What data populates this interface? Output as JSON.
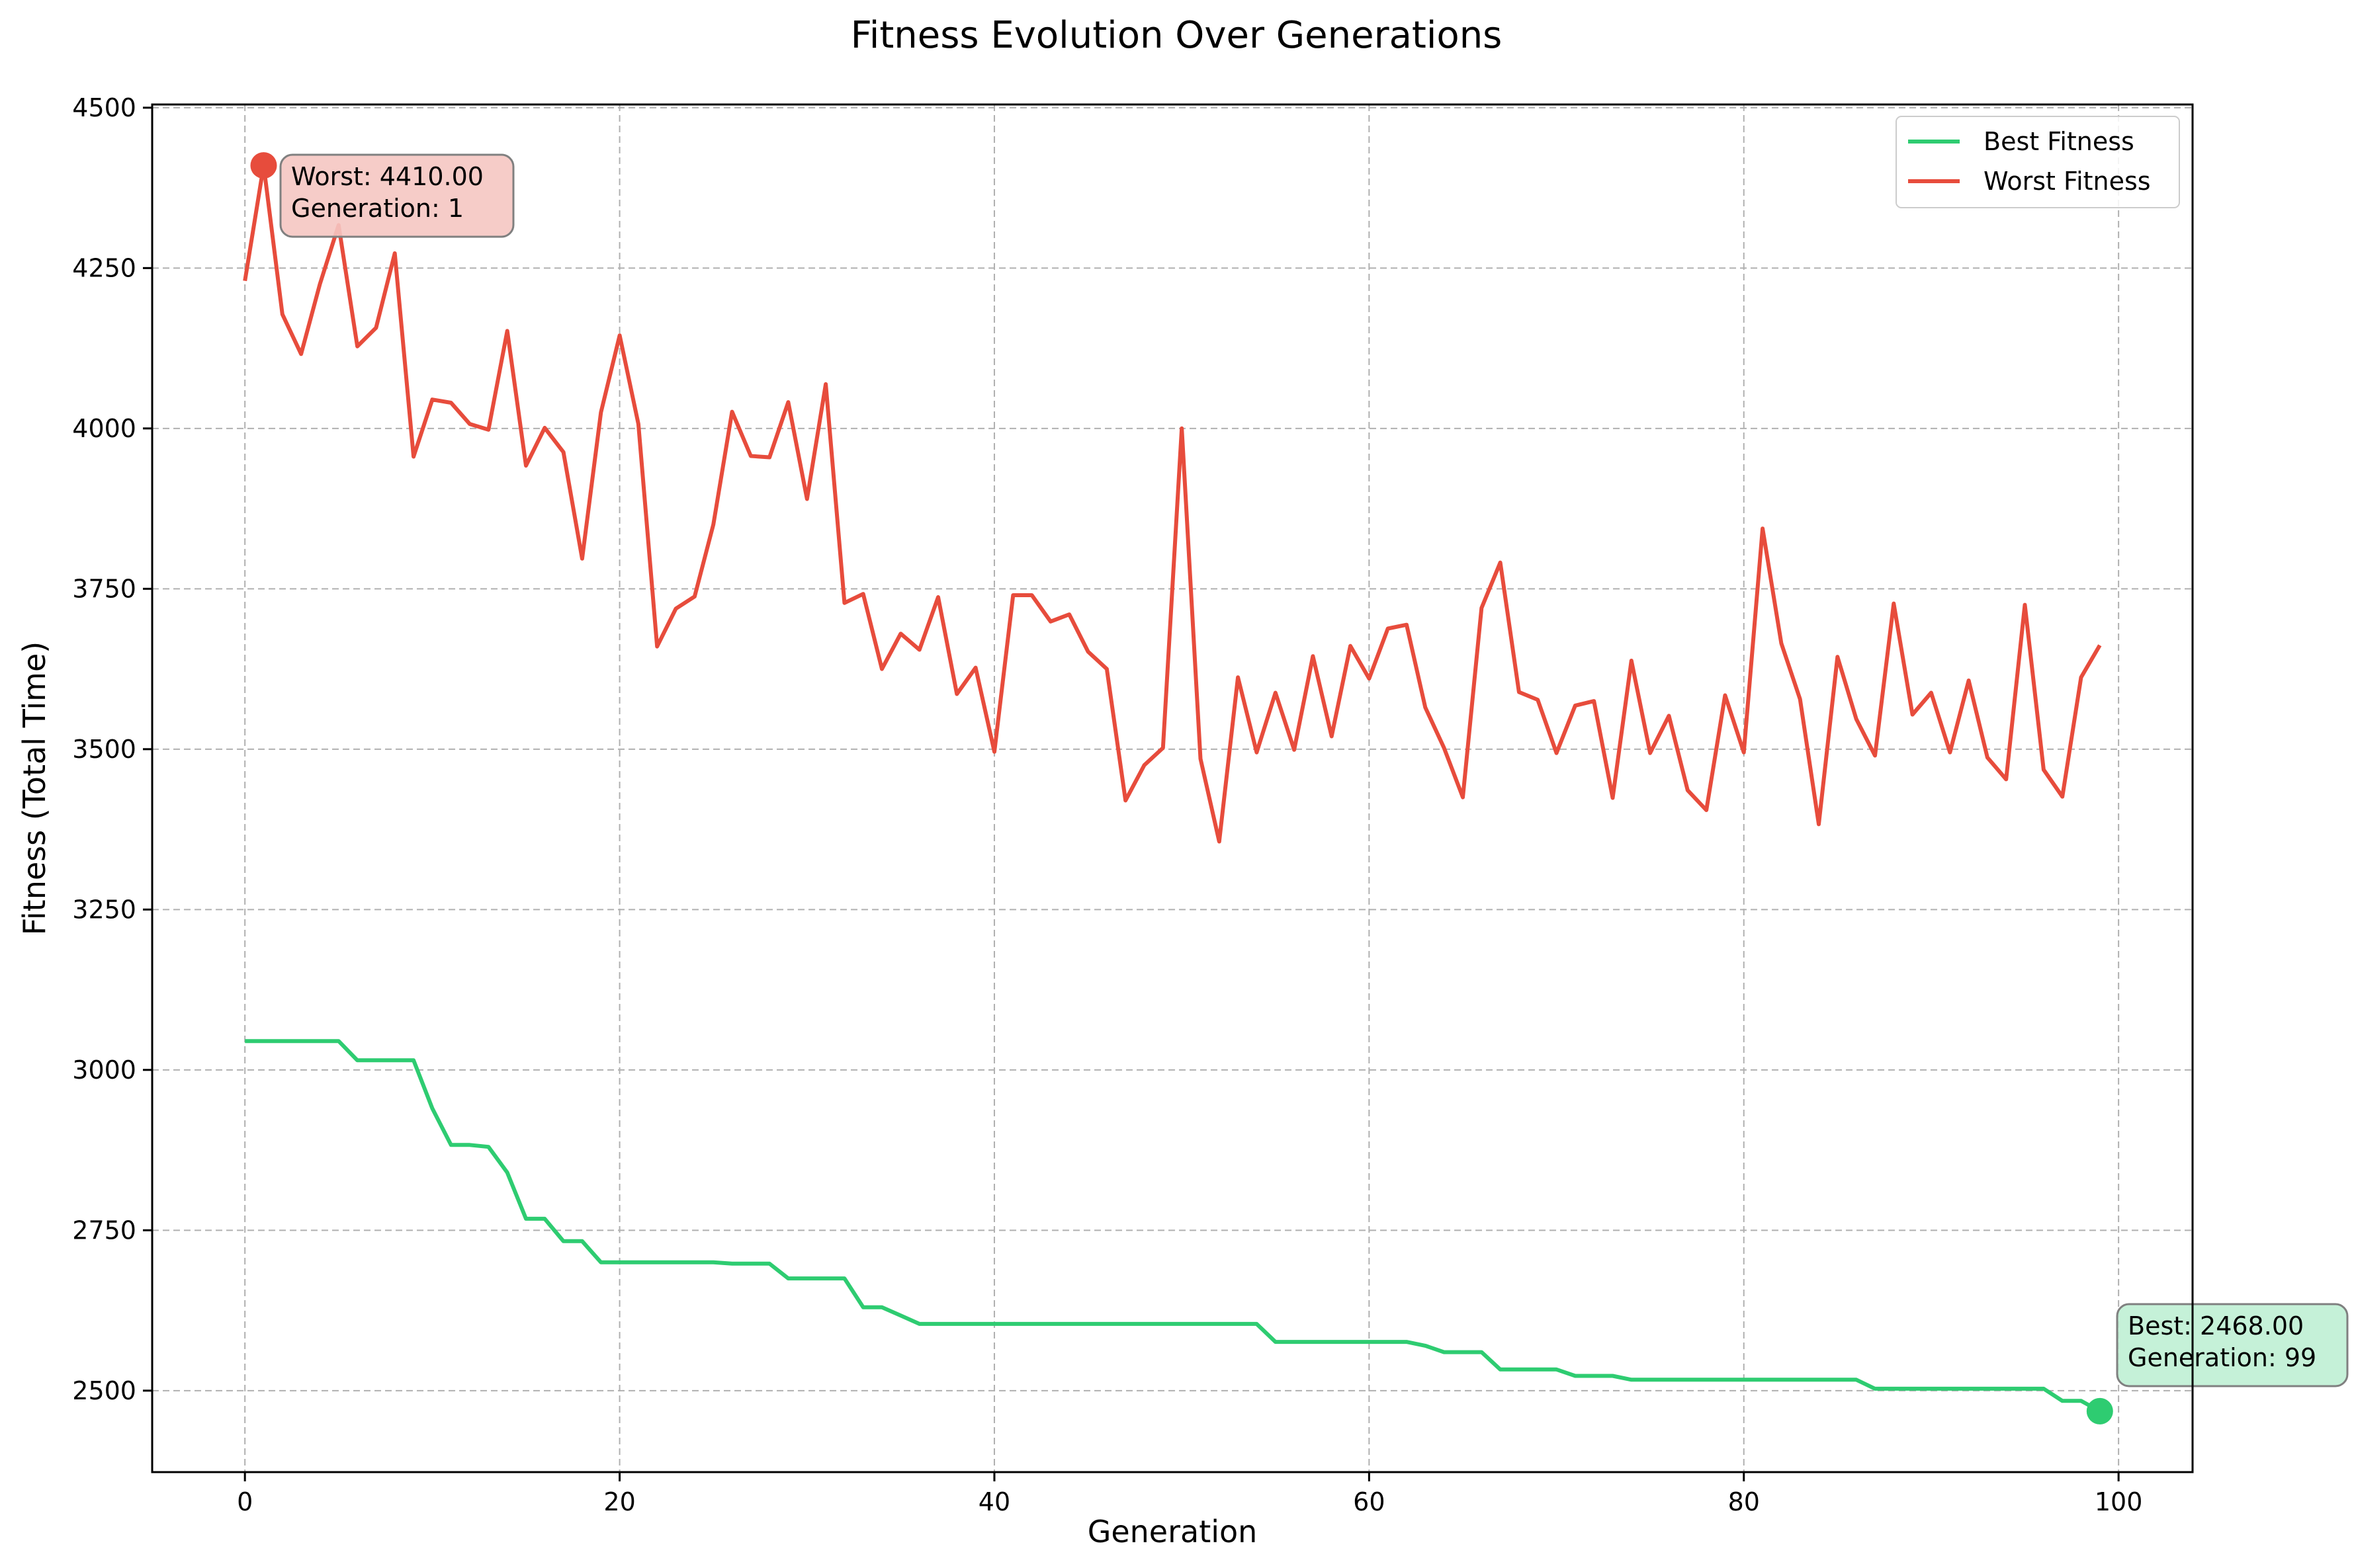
{
  "chart_data": {
    "type": "line",
    "title": "Fitness Evolution Over Generations",
    "xlabel": "Generation",
    "ylabel": "Fitness (Total Time)",
    "xlim": [
      -4.95,
      103.95
    ],
    "ylim": [
      2373,
      4505
    ],
    "xticks": [
      0,
      20,
      40,
      60,
      80,
      100
    ],
    "yticks": [
      2500,
      2750,
      3000,
      3250,
      3500,
      3750,
      4000,
      4250,
      4500
    ],
    "grid": true,
    "legend_position": "top-right",
    "series": [
      {
        "name": "Best Fitness",
        "color": "#2ecc71",
        "values": [
          3045,
          3045,
          3045,
          3045,
          3045,
          3045,
          3015,
          3015,
          3015,
          3015,
          2940,
          2883,
          2883,
          2880,
          2840,
          2768,
          2768,
          2733,
          2733,
          2700,
          2700,
          2700,
          2700,
          2700,
          2700,
          2700,
          2698,
          2698,
          2698,
          2675,
          2675,
          2675,
          2675,
          2630,
          2630,
          2617,
          2604,
          2604,
          2604,
          2604,
          2604,
          2604,
          2604,
          2604,
          2604,
          2604,
          2604,
          2604,
          2604,
          2604,
          2604,
          2604,
          2604,
          2604,
          2604,
          2576,
          2576,
          2576,
          2576,
          2576,
          2576,
          2576,
          2576,
          2570,
          2560,
          2560,
          2560,
          2533,
          2533,
          2533,
          2533,
          2523,
          2523,
          2523,
          2517,
          2517,
          2517,
          2517,
          2517,
          2517,
          2517,
          2517,
          2517,
          2517,
          2517,
          2517,
          2517,
          2503,
          2503,
          2503,
          2503,
          2503,
          2503,
          2503,
          2503,
          2503,
          2503,
          2484,
          2484,
          2468
        ]
      },
      {
        "name": "Worst Fitness",
        "color": "#e74c3c",
        "values": [
          4230,
          4410,
          4178,
          4116,
          4225,
          4317,
          4128,
          4157,
          4273,
          3956,
          4045,
          4040,
          4007,
          3998,
          4152,
          3942,
          4001,
          3963,
          3797,
          4025,
          4145,
          4007,
          3660,
          3719,
          3738,
          3850,
          4026,
          3957,
          3955,
          4041,
          3890,
          4069,
          3728,
          3742,
          3625,
          3680,
          3655,
          3737,
          3586,
          3627,
          3496,
          3740,
          3740,
          3699,
          3710,
          3652,
          3625,
          3420,
          3475,
          3502,
          4000,
          3485,
          3356,
          3612,
          3495,
          3588,
          3499,
          3645,
          3520,
          3661,
          3610,
          3688,
          3694,
          3565,
          3502,
          3425,
          3720,
          3791,
          3589,
          3577,
          3494,
          3568,
          3575,
          3424,
          3638,
          3494,
          3552,
          3436,
          3405,
          3584,
          3495,
          3844,
          3665,
          3578,
          3383,
          3644,
          3547,
          3490,
          3727,
          3554,
          3588,
          3495,
          3607,
          3487,
          3453,
          3725,
          3468,
          3426,
          3612,
          3662
        ]
      }
    ],
    "annotations": [
      {
        "series": "Worst Fitness",
        "x": 1,
        "y": 4410,
        "lines": [
          "Worst: 4410.00",
          "Generation: 1"
        ],
        "bg_color": "#f5c6c2",
        "marker_color": "#e74c3c"
      },
      {
        "series": "Best Fitness",
        "x": 99,
        "y": 2468,
        "lines": [
          "Best: 2468.00",
          "Generation: 99"
        ],
        "bg_color": "#bff0d4",
        "marker_color": "#2ecc71"
      }
    ]
  }
}
